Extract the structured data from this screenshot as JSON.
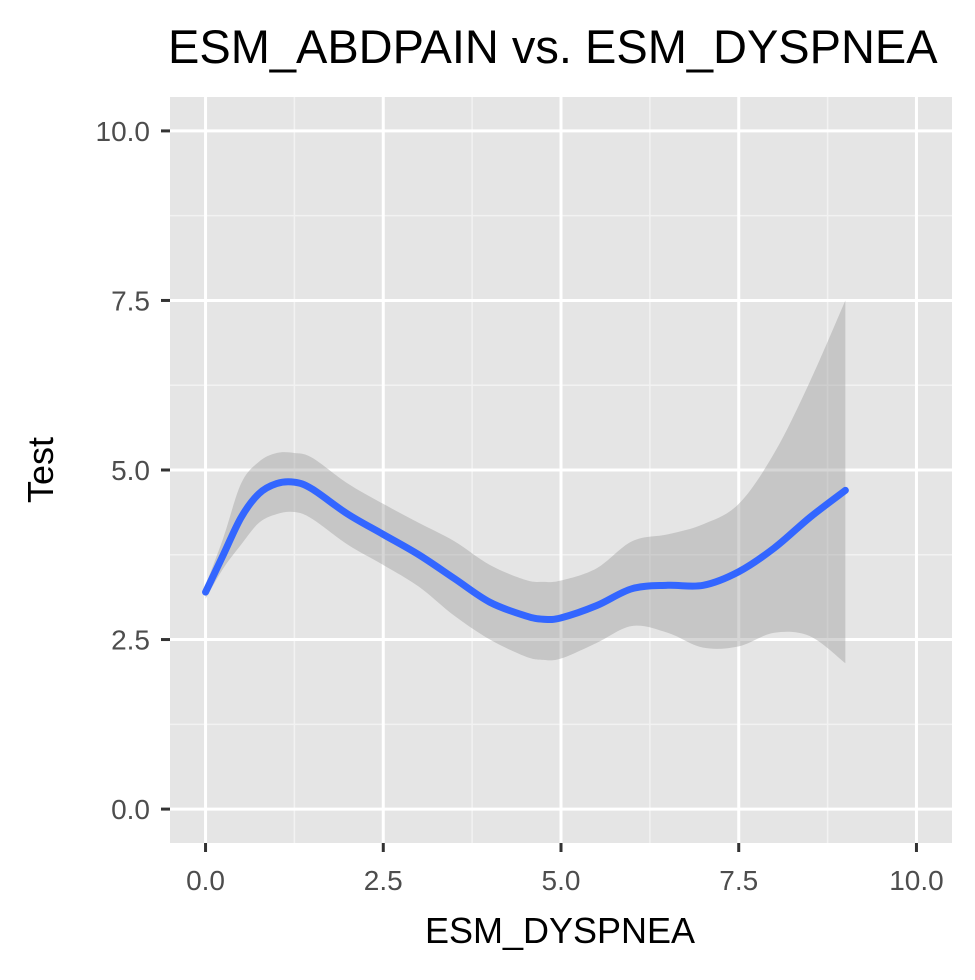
{
  "chart_data": {
    "type": "line",
    "title": "ESM_ABDPAIN vs. ESM_DYSPNEA",
    "xlabel": "ESM_DYSPNEA",
    "ylabel": "Test",
    "xlim": [
      -0.5,
      10.5
    ],
    "ylim": [
      -0.5,
      10.5
    ],
    "x_ticks": [
      0,
      2.5,
      5,
      7.5,
      10
    ],
    "y_ticks": [
      0,
      2.5,
      5,
      7.5,
      10
    ],
    "x_tick_labels": [
      "0.0",
      "2.5",
      "5.0",
      "7.5",
      "10.0"
    ],
    "y_tick_labels": [
      "0.0",
      "2.5",
      "5.0",
      "7.5",
      "10.0"
    ],
    "grid": true,
    "series": [
      {
        "color": "#3366FF",
        "band_color": "#999999",
        "x": [
          0,
          0.25,
          0.5,
          0.75,
          1.0,
          1.25,
          1.5,
          2.0,
          2.5,
          3.0,
          3.5,
          4.0,
          4.5,
          4.75,
          5.0,
          5.5,
          6.0,
          6.5,
          7.0,
          7.5,
          8.0,
          8.5,
          9.0
        ],
        "y": [
          3.2,
          3.75,
          4.3,
          4.65,
          4.8,
          4.82,
          4.72,
          4.35,
          4.05,
          3.75,
          3.4,
          3.05,
          2.85,
          2.8,
          2.82,
          3.0,
          3.25,
          3.3,
          3.3,
          3.5,
          3.85,
          4.3,
          4.7
        ],
        "upper": [
          3.3,
          4.0,
          4.8,
          5.12,
          5.25,
          5.25,
          5.18,
          4.8,
          4.5,
          4.22,
          3.95,
          3.6,
          3.38,
          3.35,
          3.37,
          3.55,
          3.95,
          4.05,
          4.2,
          4.5,
          5.25,
          6.3,
          7.5
        ],
        "lower": [
          3.1,
          3.55,
          3.9,
          4.22,
          4.35,
          4.38,
          4.28,
          3.9,
          3.6,
          3.28,
          2.85,
          2.5,
          2.25,
          2.2,
          2.22,
          2.45,
          2.7,
          2.6,
          2.38,
          2.4,
          2.6,
          2.55,
          2.15
        ]
      }
    ]
  }
}
